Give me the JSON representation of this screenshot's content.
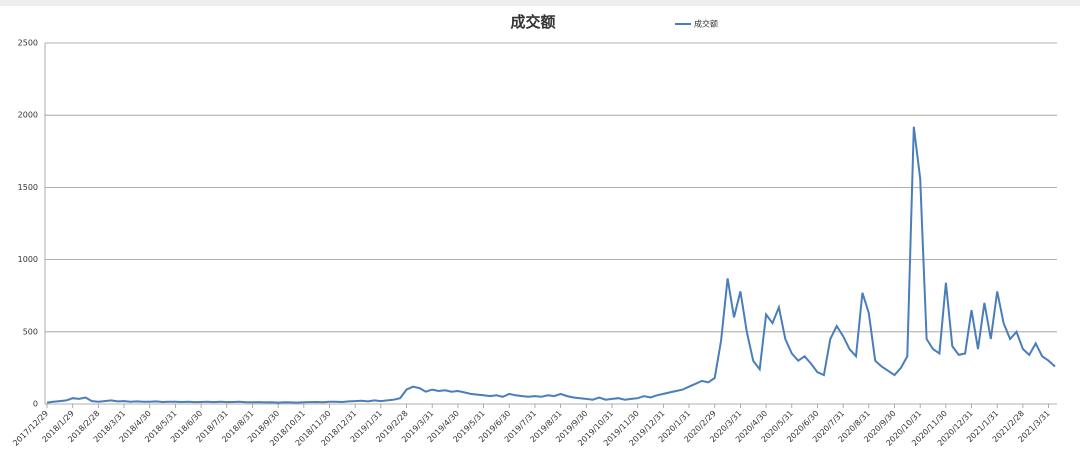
{
  "chart_data": {
    "type": "line",
    "title": "成交额",
    "categories": [
      "2017/12/29",
      null,
      null,
      null,
      "2018/1/29",
      null,
      null,
      null,
      "2018/2/28",
      null,
      null,
      null,
      "2018/3/31",
      null,
      null,
      null,
      "2018/4/30",
      null,
      null,
      null,
      "2018/5/31",
      null,
      null,
      null,
      "2018/6/30",
      null,
      null,
      null,
      "2018/7/31",
      null,
      null,
      null,
      "2018/8/31",
      null,
      null,
      null,
      "2018/9/30",
      null,
      null,
      null,
      "2018/10/31",
      null,
      null,
      null,
      "2018/11/30",
      null,
      null,
      null,
      "2018/12/31",
      null,
      null,
      null,
      "2019/1/31",
      null,
      null,
      null,
      "2019/2/28",
      null,
      null,
      null,
      "2019/3/31",
      null,
      null,
      null,
      "2019/4/30",
      null,
      null,
      null,
      "2019/5/31",
      null,
      null,
      null,
      "2019/6/30",
      null,
      null,
      null,
      "2019/7/31",
      null,
      null,
      null,
      "2019/8/31",
      null,
      null,
      null,
      "2019/9/30",
      null,
      null,
      null,
      "2019/10/31",
      null,
      null,
      null,
      "2019/11/30",
      null,
      null,
      null,
      "2019/12/31",
      null,
      null,
      null,
      "2020/1/31",
      null,
      null,
      null,
      "2020/2/29",
      null,
      null,
      null,
      "2020/3/31",
      null,
      null,
      null,
      "2020/4/30",
      null,
      null,
      null,
      "2020/5/31",
      null,
      null,
      null,
      "2020/6/30",
      null,
      null,
      null,
      "2020/7/31",
      null,
      null,
      null,
      "2020/8/31",
      null,
      null,
      null,
      "2020/9/30",
      null,
      null,
      null,
      "2020/10/31",
      null,
      null,
      null,
      "2020/11/30",
      null,
      null,
      null,
      "2020/12/31",
      null,
      null,
      null,
      "2021/1/31",
      null,
      null,
      null,
      "2021/2/28",
      null,
      null,
      null,
      "2021/3/31",
      null
    ],
    "series": [
      {
        "name": "成交额",
        "color": "#4a7ebb",
        "values": [
          10,
          15,
          20,
          25,
          40,
          35,
          45,
          20,
          15,
          20,
          25,
          18,
          20,
          15,
          18,
          15,
          15,
          18,
          14,
          16,
          15,
          14,
          16,
          13,
          14,
          15,
          13,
          15,
          13,
          14,
          15,
          12,
          12,
          13,
          11,
          12,
          10,
          12,
          11,
          10,
          12,
          13,
          14,
          12,
          15,
          16,
          14,
          18,
          20,
          22,
          18,
          25,
          20,
          25,
          30,
          40,
          100,
          120,
          110,
          85,
          100,
          90,
          95,
          85,
          90,
          80,
          70,
          65,
          60,
          55,
          60,
          50,
          70,
          60,
          55,
          50,
          55,
          50,
          60,
          55,
          70,
          55,
          45,
          40,
          35,
          30,
          45,
          30,
          35,
          40,
          30,
          35,
          40,
          55,
          45,
          60,
          70,
          80,
          90,
          100,
          120,
          140,
          160,
          150,
          180,
          440,
          870,
          600,
          780,
          500,
          300,
          240,
          620,
          560,
          670,
          450,
          350,
          300,
          330,
          280,
          220,
          200,
          450,
          540,
          470,
          380,
          330,
          770,
          630,
          300,
          260,
          230,
          200,
          250,
          330,
          1920,
          1560,
          450,
          380,
          350,
          840,
          400,
          340,
          350,
          650,
          380,
          700,
          450,
          780,
          560,
          450,
          500,
          380,
          340,
          420,
          330,
          300,
          260
        ]
      }
    ],
    "ylim": [
      0,
      2500
    ],
    "yticks": [
      0,
      500,
      1000,
      1500,
      2000,
      2500
    ],
    "grid": true,
    "legend": "top"
  }
}
